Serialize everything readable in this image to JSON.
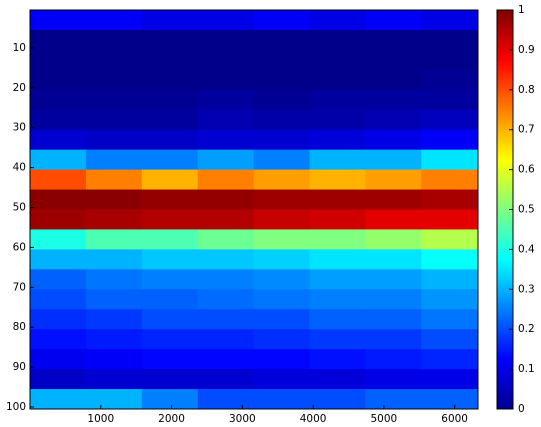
{
  "chart_data": {
    "type": "heatmap",
    "x_bins": [
      0,
      790,
      1580,
      2370,
      3160,
      3950,
      4740,
      5530,
      6330
    ],
    "y_bins": [
      0.5,
      5.5,
      10.5,
      15.5,
      20.5,
      25.5,
      30.5,
      35.5,
      40.5,
      45.5,
      50.5,
      55.5,
      60.5,
      65.5,
      70.5,
      75.5,
      80.5,
      85.5,
      90.5,
      95.5,
      100.5
    ],
    "values": [
      [
        0.12,
        0.12,
        0.1,
        0.1,
        0.12,
        0.1,
        0.12,
        0.1
      ],
      [
        0.01,
        0.01,
        0.01,
        0.01,
        0.01,
        0.01,
        0.01,
        0.01
      ],
      [
        0.01,
        0.01,
        0.01,
        0.01,
        0.01,
        0.01,
        0.01,
        0.01
      ],
      [
        0.01,
        0.01,
        0.01,
        0.01,
        0.01,
        0.01,
        0.01,
        0.02
      ],
      [
        0.02,
        0.02,
        0.02,
        0.03,
        0.02,
        0.03,
        0.03,
        0.03
      ],
      [
        0.03,
        0.03,
        0.03,
        0.05,
        0.04,
        0.04,
        0.05,
        0.06
      ],
      [
        0.08,
        0.07,
        0.07,
        0.08,
        0.08,
        0.09,
        0.1,
        0.12
      ],
      [
        0.3,
        0.25,
        0.25,
        0.28,
        0.25,
        0.3,
        0.3,
        0.35
      ],
      [
        0.8,
        0.75,
        0.7,
        0.75,
        0.72,
        0.7,
        0.72,
        0.75
      ],
      [
        0.99,
        0.99,
        0.98,
        0.98,
        0.97,
        0.97,
        0.97,
        0.96
      ],
      [
        0.97,
        0.96,
        0.95,
        0.95,
        0.93,
        0.92,
        0.9,
        0.9
      ],
      [
        0.4,
        0.45,
        0.45,
        0.48,
        0.5,
        0.5,
        0.52,
        0.55
      ],
      [
        0.3,
        0.3,
        0.32,
        0.32,
        0.33,
        0.35,
        0.35,
        0.38
      ],
      [
        0.22,
        0.24,
        0.25,
        0.25,
        0.26,
        0.28,
        0.28,
        0.3
      ],
      [
        0.2,
        0.22,
        0.22,
        0.23,
        0.24,
        0.25,
        0.25,
        0.27
      ],
      [
        0.17,
        0.18,
        0.2,
        0.2,
        0.2,
        0.22,
        0.22,
        0.24
      ],
      [
        0.14,
        0.15,
        0.16,
        0.16,
        0.17,
        0.18,
        0.18,
        0.2
      ],
      [
        0.11,
        0.12,
        0.13,
        0.13,
        0.13,
        0.14,
        0.15,
        0.16
      ],
      [
        0.07,
        0.08,
        0.08,
        0.08,
        0.09,
        0.09,
        0.1,
        0.1
      ],
      [
        0.3,
        0.3,
        0.25,
        0.2,
        0.2,
        0.2,
        0.22,
        0.22
      ]
    ],
    "xlim": [
      0,
      6330
    ],
    "xticks": [
      1000,
      2000,
      3000,
      4000,
      5000,
      6000
    ],
    "ylim": [
      0.5,
      100.5
    ],
    "yticks": [
      10,
      20,
      30,
      40,
      50,
      60,
      70,
      80,
      90,
      100
    ],
    "y_reversed": true,
    "colormap": "jet",
    "clim": [
      0,
      1
    ],
    "colorbar_ticks": [
      0,
      0.1,
      0.2,
      0.3,
      0.4,
      0.5,
      0.6,
      0.7,
      0.8,
      0.9,
      1
    ]
  }
}
